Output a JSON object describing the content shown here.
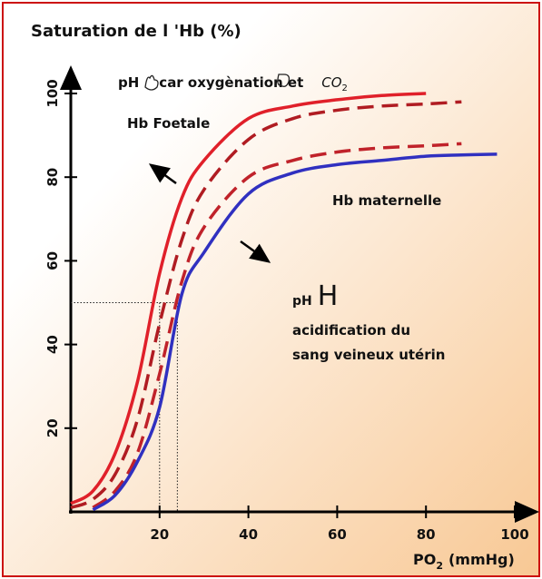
{
  "chart_data": {
    "type": "line",
    "title": "Saturation de l 'Hb (%)",
    "x_label": {
      "main": "PO",
      "sub": "2",
      "unit": "(mmHg)"
    },
    "annotations": {
      "top_ph": "pH",
      "top_text": "car oxygènation et",
      "top_co": "CO",
      "top_co_sub": "2",
      "foetale": "Hb Foetale",
      "maternelle": "Hb maternelle",
      "mid_ph": "pH",
      "mid_h": "H",
      "acid1": "acidification du",
      "acid2": "sang veineux utérin"
    },
    "x": [
      0,
      5,
      10,
      15,
      20,
      25,
      30,
      40,
      50,
      60,
      70,
      80,
      88,
      96
    ],
    "series": [
      {
        "color": "#e0202a",
        "dash": false,
        "values": [
          2,
          5,
          14,
          31,
          57,
          75,
          84,
          94,
          97,
          98.5,
          99.5,
          100,
          null,
          null
        ]
      },
      {
        "color": "#b01c22",
        "dash": true,
        "values": [
          1,
          3,
          9,
          22,
          45,
          65,
          77,
          89,
          94,
          96,
          97,
          97.5,
          98,
          null
        ]
      },
      {
        "color": "#c0222a",
        "dash": true,
        "values": [
          null,
          1,
          5,
          14,
          33,
          55,
          68,
          80,
          84,
          86,
          87,
          87.5,
          88,
          null
        ]
      },
      {
        "color": "#3030c0",
        "dash": false,
        "values": [
          null,
          0.5,
          4,
          12,
          25,
          52,
          62,
          76,
          81,
          83,
          84,
          85,
          85.3,
          85.5
        ]
      }
    ],
    "guides": {
      "y": 50,
      "x": [
        20,
        24
      ]
    },
    "xlim": [
      0,
      100
    ],
    "ylim": [
      0,
      100
    ],
    "xticks": [
      20,
      40,
      60,
      80,
      100
    ],
    "yticks": [
      20,
      40,
      60,
      80,
      100
    ]
  }
}
